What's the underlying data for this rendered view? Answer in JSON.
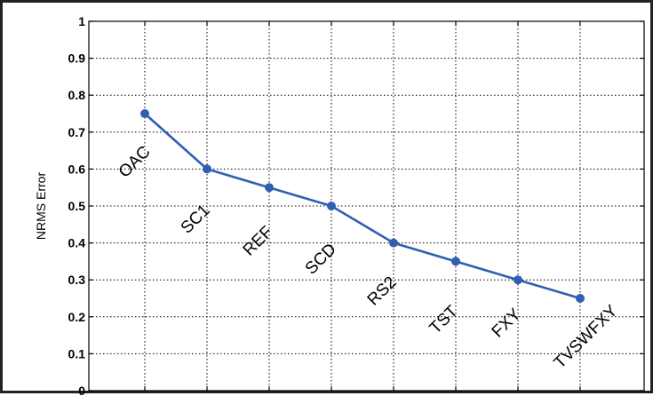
{
  "chart_data": {
    "type": "line",
    "title": "",
    "xlabel": "",
    "ylabel": "NRMS Error",
    "categories": [
      "OAC",
      "SC1",
      "REF",
      "SCD",
      "RS2",
      "TST",
      "FXY",
      "TVSWFXY"
    ],
    "series": [
      {
        "values": [
          0.75,
          0.6,
          0.55,
          0.5,
          0.4,
          0.35,
          0.3,
          0.25
        ]
      }
    ],
    "ylim": [
      0,
      1
    ],
    "yticks": [
      "0",
      "0.1",
      "0.2",
      "0.3",
      "0.4",
      "0.5",
      "0.6",
      "0.7",
      "0.8",
      "0.9",
      "1"
    ],
    "grid": true,
    "line_color": "#2f5fb3",
    "marker": "filled-circle"
  }
}
